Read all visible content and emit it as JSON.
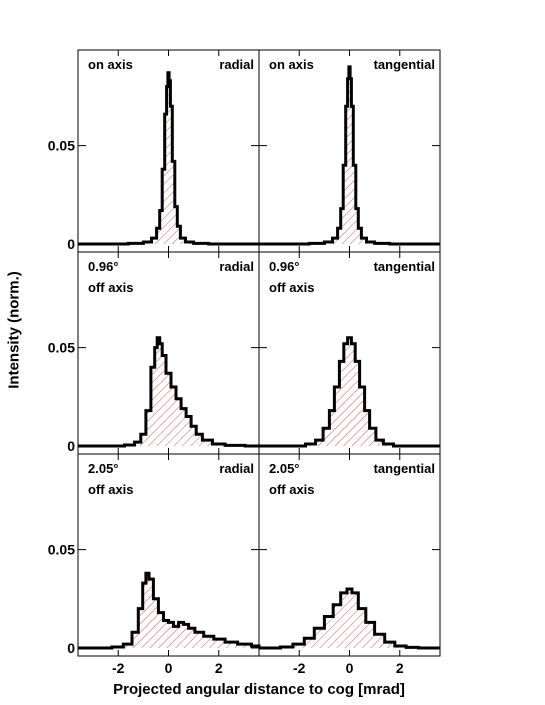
{
  "chart_data": {
    "type": "area",
    "layout": "3 rows x 2 columns of histograms",
    "ylabel": "Intensity (norm.)",
    "xlabel": "Projected angular distance to cog [mrad]",
    "xlim": [
      -3.6,
      3.6
    ],
    "ylim": [
      0,
      0.093
    ],
    "x_ticks": [
      "-2",
      "0",
      "2"
    ],
    "x_tick_values": [
      -2,
      0,
      2
    ],
    "y_ticks": [
      "0",
      "0.05"
    ],
    "y_tick_values": [
      0,
      0.05
    ],
    "fill": "red hatched",
    "panels": [
      {
        "label_left": [
          "on axis"
        ],
        "label_right": "radial",
        "x": [
          -3.6,
          -2.0,
          -1.2,
          -0.8,
          -0.55,
          -0.4,
          -0.3,
          -0.2,
          -0.1,
          -0.05,
          0.0,
          0.05,
          0.1,
          0.2,
          0.3,
          0.4,
          0.55,
          0.8,
          1.2,
          2.0,
          3.6
        ],
        "y": [
          0,
          0,
          0.0003,
          0.001,
          0.003,
          0.008,
          0.017,
          0.038,
          0.066,
          0.08,
          0.087,
          0.083,
          0.07,
          0.042,
          0.019,
          0.009,
          0.003,
          0.001,
          0.0003,
          0,
          0
        ]
      },
      {
        "label_left": [
          "on axis"
        ],
        "label_right": "tangential",
        "x": [
          -3.6,
          -2.0,
          -1.2,
          -0.8,
          -0.55,
          -0.4,
          -0.3,
          -0.2,
          -0.1,
          -0.05,
          0.0,
          0.05,
          0.1,
          0.2,
          0.3,
          0.4,
          0.55,
          0.8,
          1.2,
          2.0,
          3.6
        ],
        "y": [
          0,
          0,
          0.0003,
          0.001,
          0.003,
          0.008,
          0.018,
          0.04,
          0.07,
          0.084,
          0.09,
          0.084,
          0.07,
          0.04,
          0.018,
          0.008,
          0.003,
          0.001,
          0.0003,
          0,
          0
        ]
      },
      {
        "label_left": [
          "0.96°",
          "off axis"
        ],
        "label_right": "radial",
        "x": [
          -3.6,
          -2.0,
          -1.5,
          -1.2,
          -1.0,
          -0.8,
          -0.6,
          -0.5,
          -0.4,
          -0.3,
          -0.2,
          0.0,
          0.2,
          0.4,
          0.6,
          0.8,
          1.0,
          1.2,
          1.5,
          2.0,
          2.5,
          3.6
        ],
        "y": [
          0,
          0,
          0.0005,
          0.002,
          0.006,
          0.018,
          0.04,
          0.05,
          0.055,
          0.052,
          0.046,
          0.037,
          0.03,
          0.024,
          0.019,
          0.015,
          0.01,
          0.006,
          0.003,
          0.001,
          0.0003,
          0
        ]
      },
      {
        "label_left": [
          "0.96°",
          "off axis"
        ],
        "label_right": "tangential",
        "x": [
          -3.6,
          -2.0,
          -1.5,
          -1.2,
          -0.9,
          -0.7,
          -0.5,
          -0.3,
          -0.15,
          0.0,
          0.15,
          0.3,
          0.5,
          0.7,
          0.9,
          1.2,
          1.5,
          2.0,
          3.6
        ],
        "y": [
          0,
          0,
          0.001,
          0.003,
          0.009,
          0.018,
          0.03,
          0.043,
          0.052,
          0.055,
          0.052,
          0.043,
          0.03,
          0.018,
          0.009,
          0.003,
          0.001,
          0,
          0
        ]
      },
      {
        "label_left": [
          "2.05°",
          "off axis"
        ],
        "label_right": "radial",
        "x": [
          -3.6,
          -2.5,
          -2.0,
          -1.6,
          -1.3,
          -1.1,
          -0.95,
          -0.85,
          -0.7,
          -0.5,
          -0.3,
          -0.1,
          0.1,
          0.3,
          0.5,
          0.7,
          0.9,
          1.2,
          1.6,
          2.0,
          2.5,
          3.0,
          3.6
        ],
        "y": [
          0,
          0,
          0.0005,
          0.002,
          0.008,
          0.02,
          0.033,
          0.038,
          0.035,
          0.025,
          0.018,
          0.014,
          0.013,
          0.011,
          0.013,
          0.012,
          0.01,
          0.008,
          0.006,
          0.0045,
          0.003,
          0.002,
          0.001
        ]
      },
      {
        "label_left": [
          "2.05°",
          "off axis"
        ],
        "label_right": "tangential",
        "x": [
          -3.6,
          -3.0,
          -2.5,
          -2.0,
          -1.6,
          -1.2,
          -0.8,
          -0.5,
          -0.2,
          0.0,
          0.2,
          0.5,
          0.8,
          1.2,
          1.6,
          2.0,
          2.5,
          3.0,
          3.6
        ],
        "y": [
          0,
          0,
          0.0005,
          0.002,
          0.005,
          0.01,
          0.016,
          0.022,
          0.028,
          0.03,
          0.028,
          0.02,
          0.013,
          0.007,
          0.003,
          0.001,
          0.0003,
          0,
          0
        ]
      }
    ]
  }
}
